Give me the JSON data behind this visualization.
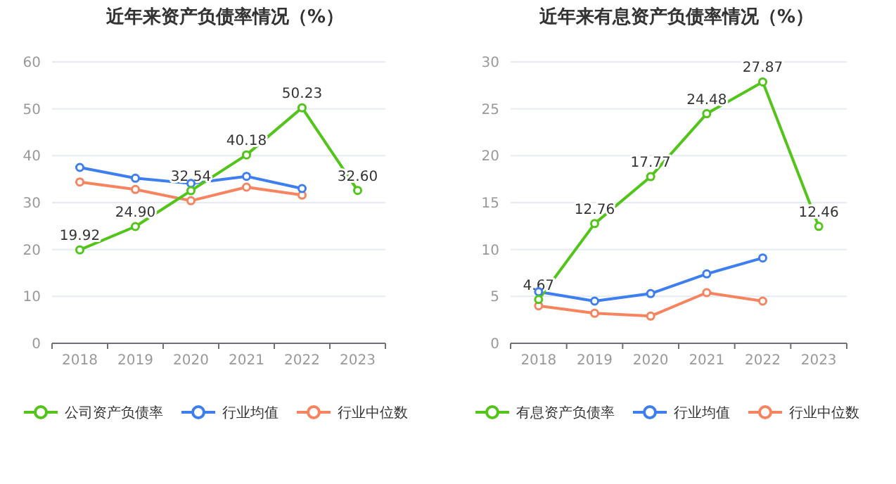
{
  "chart_data": [
    {
      "type": "line",
      "title": "近年来资产负债率情况（%）",
      "categories": [
        "2018",
        "2019",
        "2020",
        "2021",
        "2022",
        "2023"
      ],
      "series": [
        {
          "name": "公司资产负债率",
          "color": "#52c41a",
          "values": [
            19.92,
            24.9,
            32.54,
            40.18,
            50.23,
            32.6
          ],
          "value_labels": [
            "19.92",
            "24.90",
            "32.54",
            "40.18",
            "50.23",
            "32.60"
          ]
        },
        {
          "name": "行业均值",
          "color": "#3d7ef0",
          "values": [
            37.5,
            35.2,
            34.1,
            35.6,
            33.0,
            null
          ]
        },
        {
          "name": "行业中位数",
          "color": "#f7845e",
          "values": [
            34.4,
            32.8,
            30.4,
            33.3,
            31.6,
            null
          ]
        }
      ],
      "ylim": [
        0,
        60
      ],
      "yticks": [
        0,
        10,
        20,
        30,
        40,
        50,
        60
      ],
      "grid": "y",
      "legend": "bottom",
      "marker": "circle"
    },
    {
      "type": "line",
      "title": "近年来有息资产负债率情况（%）",
      "categories": [
        "2018",
        "2019",
        "2020",
        "2021",
        "2022",
        "2023"
      ],
      "series": [
        {
          "name": "有息资产负债率",
          "color": "#52c41a",
          "values": [
            4.67,
            12.76,
            17.77,
            24.48,
            27.87,
            12.46
          ],
          "value_labels": [
            "4.67",
            "12.76",
            "17.77",
            "24.48",
            "27.87",
            "12.46"
          ]
        },
        {
          "name": "行业均值",
          "color": "#3d7ef0",
          "values": [
            5.5,
            4.5,
            5.3,
            7.4,
            9.1,
            null
          ]
        },
        {
          "name": "行业中位数",
          "color": "#f7845e",
          "values": [
            4.0,
            3.2,
            2.9,
            5.4,
            4.5,
            null
          ]
        }
      ],
      "ylim": [
        0,
        30
      ],
      "yticks": [
        0,
        5,
        10,
        15,
        20,
        25,
        30
      ],
      "grid": "y",
      "legend": "bottom",
      "marker": "circle"
    }
  ]
}
